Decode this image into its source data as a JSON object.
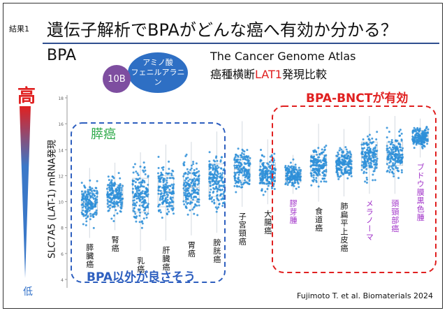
{
  "header": {
    "tag": "結果1",
    "title": "遺伝子解析でBPAがどんな癌へ有効か分かる？"
  },
  "drug": {
    "name": "BPA",
    "boron_label": "10B",
    "amino_line1": "アミノ酸",
    "amino_line2": "フェニルアラニン"
  },
  "source": {
    "database": "The Cancer Genome Atlas",
    "subtitle_prefix": "癌種横断",
    "subtitle_gene": "LAT1",
    "subtitle_suffix": "発現比較"
  },
  "scale": {
    "high": "高",
    "low": "低",
    "colors": {
      "high": "#e02020",
      "low": "#3070c8"
    }
  },
  "chart_data": {
    "type": "scatter",
    "ylabel": "SLC7A5 (LAT-1) mRNA発現",
    "ylim": [
      4,
      18
    ],
    "yticks": [
      4,
      6,
      8,
      10,
      12,
      14,
      16,
      18
    ],
    "grid": false,
    "point_color": "#2e8fd8",
    "categories": [
      {
        "label": "膵臓癌",
        "color": "#111111",
        "min": 7.2,
        "q1": 9.0,
        "median": 9.9,
        "q3": 10.8,
        "max": 12.6
      },
      {
        "label": "腎癌",
        "color": "#111111",
        "min": 7.8,
        "q1": 9.6,
        "median": 10.5,
        "q3": 11.3,
        "max": 13.0
      },
      {
        "label": "乳癌",
        "color": "#111111",
        "min": 6.2,
        "q1": 9.2,
        "median": 10.4,
        "q3": 11.8,
        "max": 13.8
      },
      {
        "label": "肝臓癌",
        "color": "#111111",
        "min": 7.0,
        "q1": 9.6,
        "median": 10.8,
        "q3": 12.0,
        "max": 14.4
      },
      {
        "label": "胃癌",
        "color": "#111111",
        "min": 7.4,
        "q1": 10.1,
        "median": 11.1,
        "q3": 12.2,
        "max": 14.6
      },
      {
        "label": "膀胱癌",
        "color": "#111111",
        "min": 7.6,
        "q1": 10.4,
        "median": 11.6,
        "q3": 12.9,
        "max": 15.4
      },
      {
        "label": "子宮頸癌",
        "color": "#111111",
        "min": 9.6,
        "q1": 11.6,
        "median": 12.5,
        "q3": 13.4,
        "max": 16.2
      },
      {
        "label": "大腸癌",
        "color": "#111111",
        "min": 9.8,
        "q1": 11.5,
        "median": 12.2,
        "q3": 13.0,
        "max": 14.8
      },
      {
        "label": "膠芽腫",
        "color": "#a030c8",
        "min": 10.6,
        "q1": 11.5,
        "median": 12.0,
        "q3": 12.5,
        "max": 13.6
      },
      {
        "label": "食道癌",
        "color": "#111111",
        "min": 10.0,
        "q1": 12.0,
        "median": 12.8,
        "q3": 13.6,
        "max": 16.0
      },
      {
        "label": "肺扁平上皮癌",
        "color": "#111111",
        "min": 10.4,
        "q1": 12.2,
        "median": 12.9,
        "q3": 13.6,
        "max": 15.6
      },
      {
        "label": "メラノーマ",
        "color": "#a030c8",
        "min": 10.6,
        "q1": 12.6,
        "median": 13.5,
        "q3": 14.6,
        "max": 16.6
      },
      {
        "label": "頭頸部癌",
        "color": "#a030c8",
        "min": 10.6,
        "q1": 12.8,
        "median": 13.6,
        "q3": 14.6,
        "max": 16.6
      },
      {
        "label": "ブドウ膜黒色腫",
        "color": "#a030c8",
        "min": 13.4,
        "q1": 14.6,
        "median": 15.0,
        "q3": 15.5,
        "max": 16.4
      }
    ],
    "annotations": [
      {
        "text": "膵癌",
        "color": "#2eaa4a"
      },
      {
        "text": "BPA以外が良さそう",
        "color": "#2e5fbf"
      },
      {
        "text": "BPA-BNCTが有効",
        "color": "#e02020"
      }
    ]
  },
  "citation": "Fujimoto T. et al. Biomaterials 2024"
}
